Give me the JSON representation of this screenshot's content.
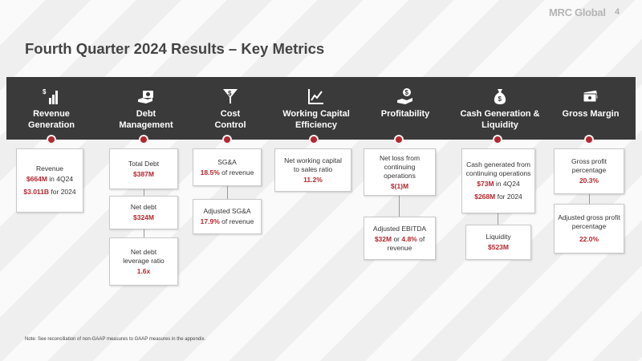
{
  "header": {
    "logo": "MRC Global",
    "page_number": "4",
    "title": "Fourth Quarter 2024 Results – Key Metrics"
  },
  "columns": [
    {
      "label": "Revenue\nGeneration",
      "icon": "bar-chart-dollar-icon"
    },
    {
      "label": "Debt\nManagement",
      "icon": "hand-money-icon"
    },
    {
      "label": "Cost\nControl",
      "icon": "dollar-funnel-icon"
    },
    {
      "label": "Working Capital\nEfficiency",
      "icon": "line-chart-icon"
    },
    {
      "label": "Profitability",
      "icon": "hand-coin-icon"
    },
    {
      "label": "Cash Generation &\nLiquidity",
      "icon": "money-bag-icon"
    },
    {
      "label": "Gross Margin",
      "icon": "cash-icon"
    }
  ],
  "cards": {
    "revenue": {
      "line1": "Revenue",
      "v1": "$664M",
      "t1": " in 4Q24",
      "v2": "$3.011B",
      "t2": " for 2024"
    },
    "total_debt": {
      "label": "Total Debt",
      "value": "$387M"
    },
    "net_debt": {
      "label": "Net debt",
      "value": "$324M"
    },
    "leverage": {
      "label": "Net debt leverage ratio",
      "value": "1.6x"
    },
    "sga": {
      "label": "SG&A",
      "value": "18.5%",
      "suffix": " of revenue"
    },
    "adj_sga": {
      "label": "Adjusted SG&A",
      "value": "17.9%",
      "suffix": " of revenue"
    },
    "nwc": {
      "label": "Net working capital to sales ratio",
      "value": "11.2%"
    },
    "net_loss": {
      "label": "Net loss from continuing operations",
      "value": "$(1)M"
    },
    "adj_ebitda": {
      "label": "Adjusted EBITDA",
      "v1": "$32M",
      "mid": " or ",
      "v2": "4.8%",
      "suffix": " of revenue"
    },
    "cash": {
      "label": "Cash generated from continuing operations",
      "v1": "$73M",
      "t1": " in 4Q24",
      "v2": "$268M",
      "t2": " for 2024"
    },
    "liquidity": {
      "label": "Liquidity",
      "value": "$523M"
    },
    "gross": {
      "label": "Gross profit percentage",
      "value": "20.3%"
    },
    "adj_gross": {
      "label": "Adjusted gross profit percentage",
      "value": "22.0%"
    }
  },
  "footnote": "Note: See reconciliation of non-GAAP measures to GAAP measures in the appendix."
}
